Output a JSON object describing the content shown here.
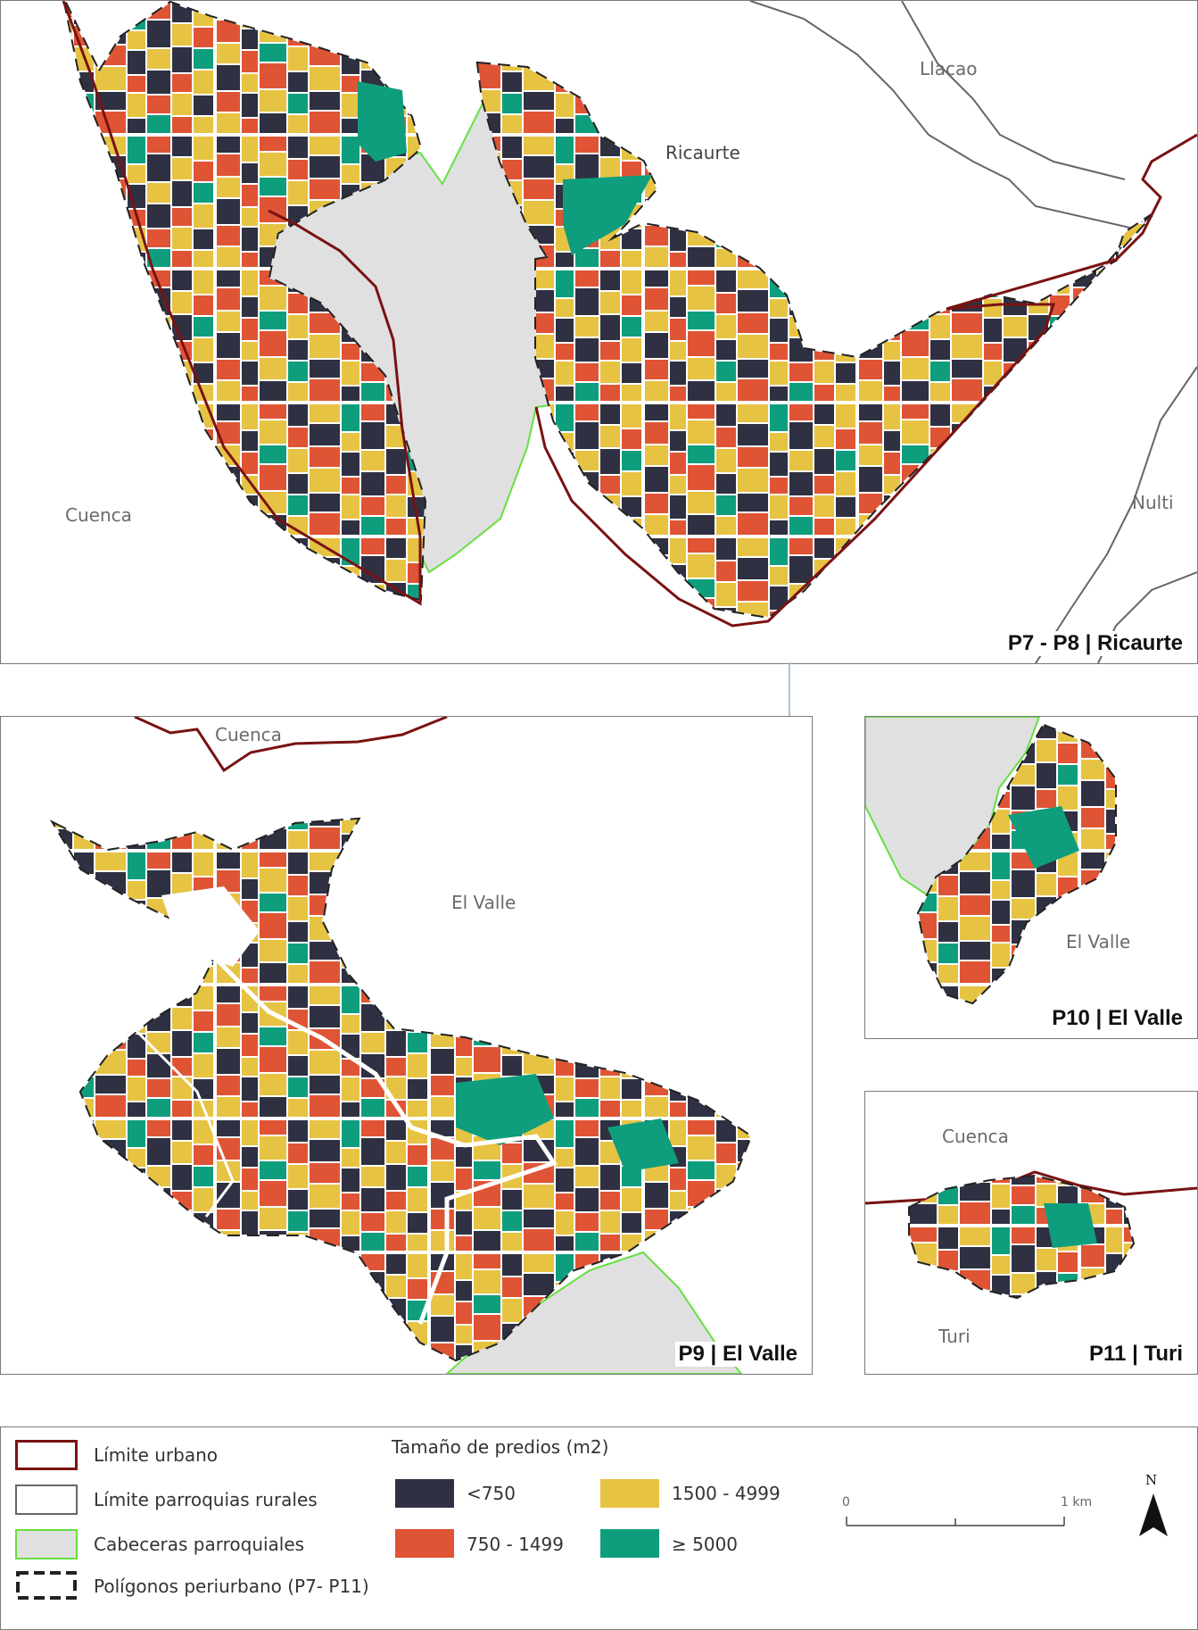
{
  "panels": {
    "p7p8": {
      "title": "P7 - P8 | Ricaurte",
      "labels": {
        "llacao": "Llacao",
        "ricaurte": "Ricaurte",
        "cuenca": "Cuenca",
        "nulti": "Nulti"
      }
    },
    "p9": {
      "title": "P9 | El Valle",
      "labels": {
        "cuenca": "Cuenca",
        "elvalle": "El Valle"
      }
    },
    "p10": {
      "title": "P10 | El Valle",
      "labels": {
        "elvalle": "El Valle"
      }
    },
    "p11": {
      "title": "P11 | Turi",
      "labels": {
        "cuenca": "Cuenca",
        "turi": "Turi"
      }
    }
  },
  "legend": {
    "boundaries": [
      {
        "label": "Límite urbano",
        "icon": "urban-limit-swatch"
      },
      {
        "label": "Límite parroquias rurales",
        "icon": "rural-parish-swatch"
      },
      {
        "label": "Cabeceras parroquiales",
        "icon": "parish-head-swatch"
      },
      {
        "label": "Polígonos periurbano (P7- P11)",
        "icon": "periurban-polygon-swatch"
      }
    ],
    "size_title": "Tamaño de predios (m2)",
    "sizes": [
      {
        "label": "<750",
        "color": "#2f3142"
      },
      {
        "label": "750 - 1499",
        "color": "#df5435"
      },
      {
        "label": "1500 - 4999",
        "color": "#e6c343"
      },
      {
        "label": "≥ 5000",
        "color": "#0f9e7d"
      }
    ],
    "scale": {
      "start": "0",
      "end": "1 km"
    },
    "north": "N"
  },
  "colors": {
    "urban_limit": "#7a1212",
    "rural_limit": "#666666",
    "parish_head_fill": "#e0e0e0",
    "parish_head_stroke": "#66e040",
    "halo": "#c8c8c8"
  }
}
